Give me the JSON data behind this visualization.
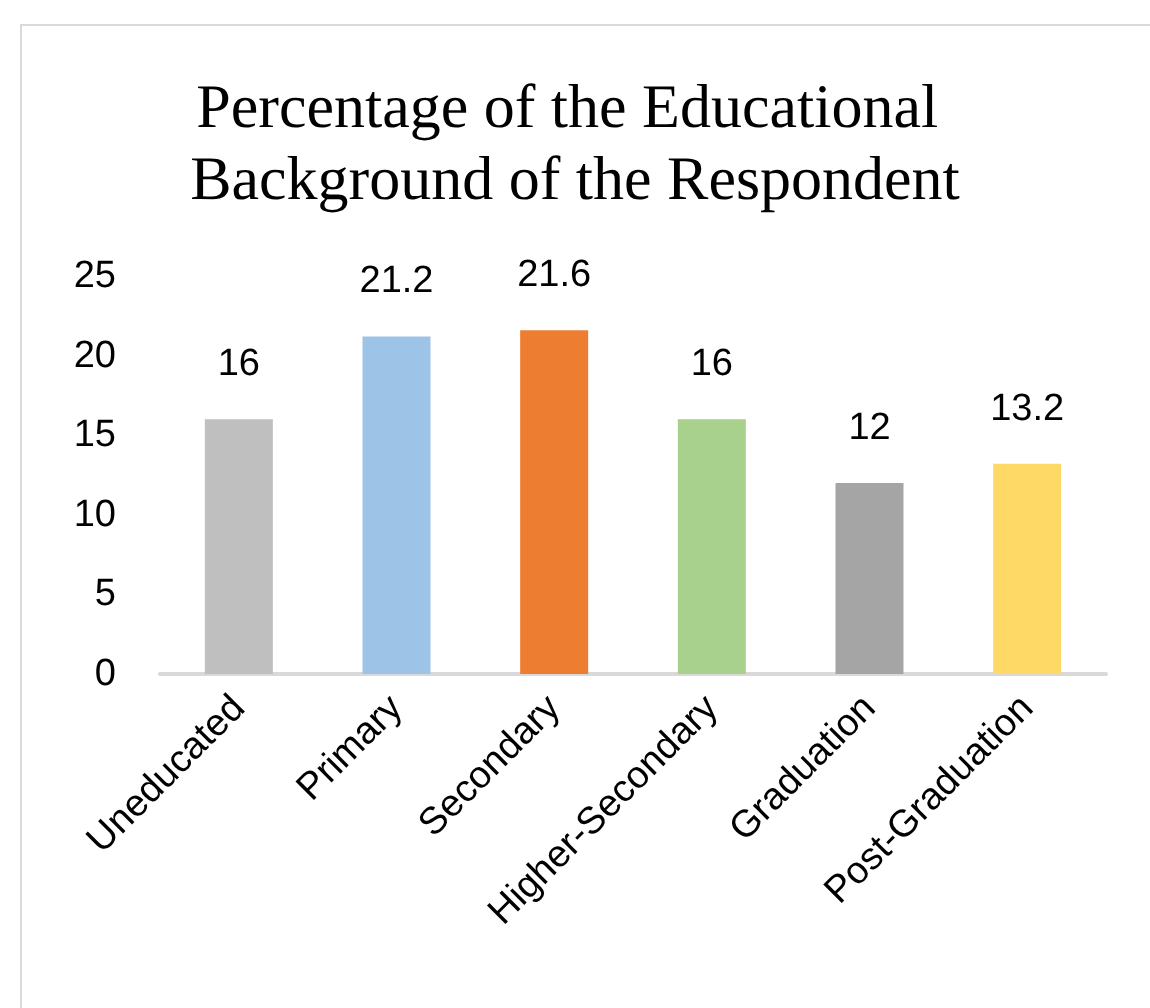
{
  "chart_data": {
    "type": "bar",
    "title": "Percentage of the Educational Background of the Respondent",
    "categories": [
      "Uneducated",
      "Primary",
      "Secondary",
      "Higher-Secondary",
      "Graduation",
      "Post-Graduation"
    ],
    "values": [
      16,
      21.2,
      21.6,
      16,
      12,
      13.2
    ],
    "colors": [
      "#bfbfbf",
      "#9dc3e6",
      "#ed7d31",
      "#a9d18e",
      "#a5a5a5",
      "#ffd966"
    ],
    "ylim": [
      0,
      25
    ],
    "yticks": [
      0,
      5,
      10,
      15,
      20,
      25
    ],
    "grid": false,
    "data_labels": true
  }
}
